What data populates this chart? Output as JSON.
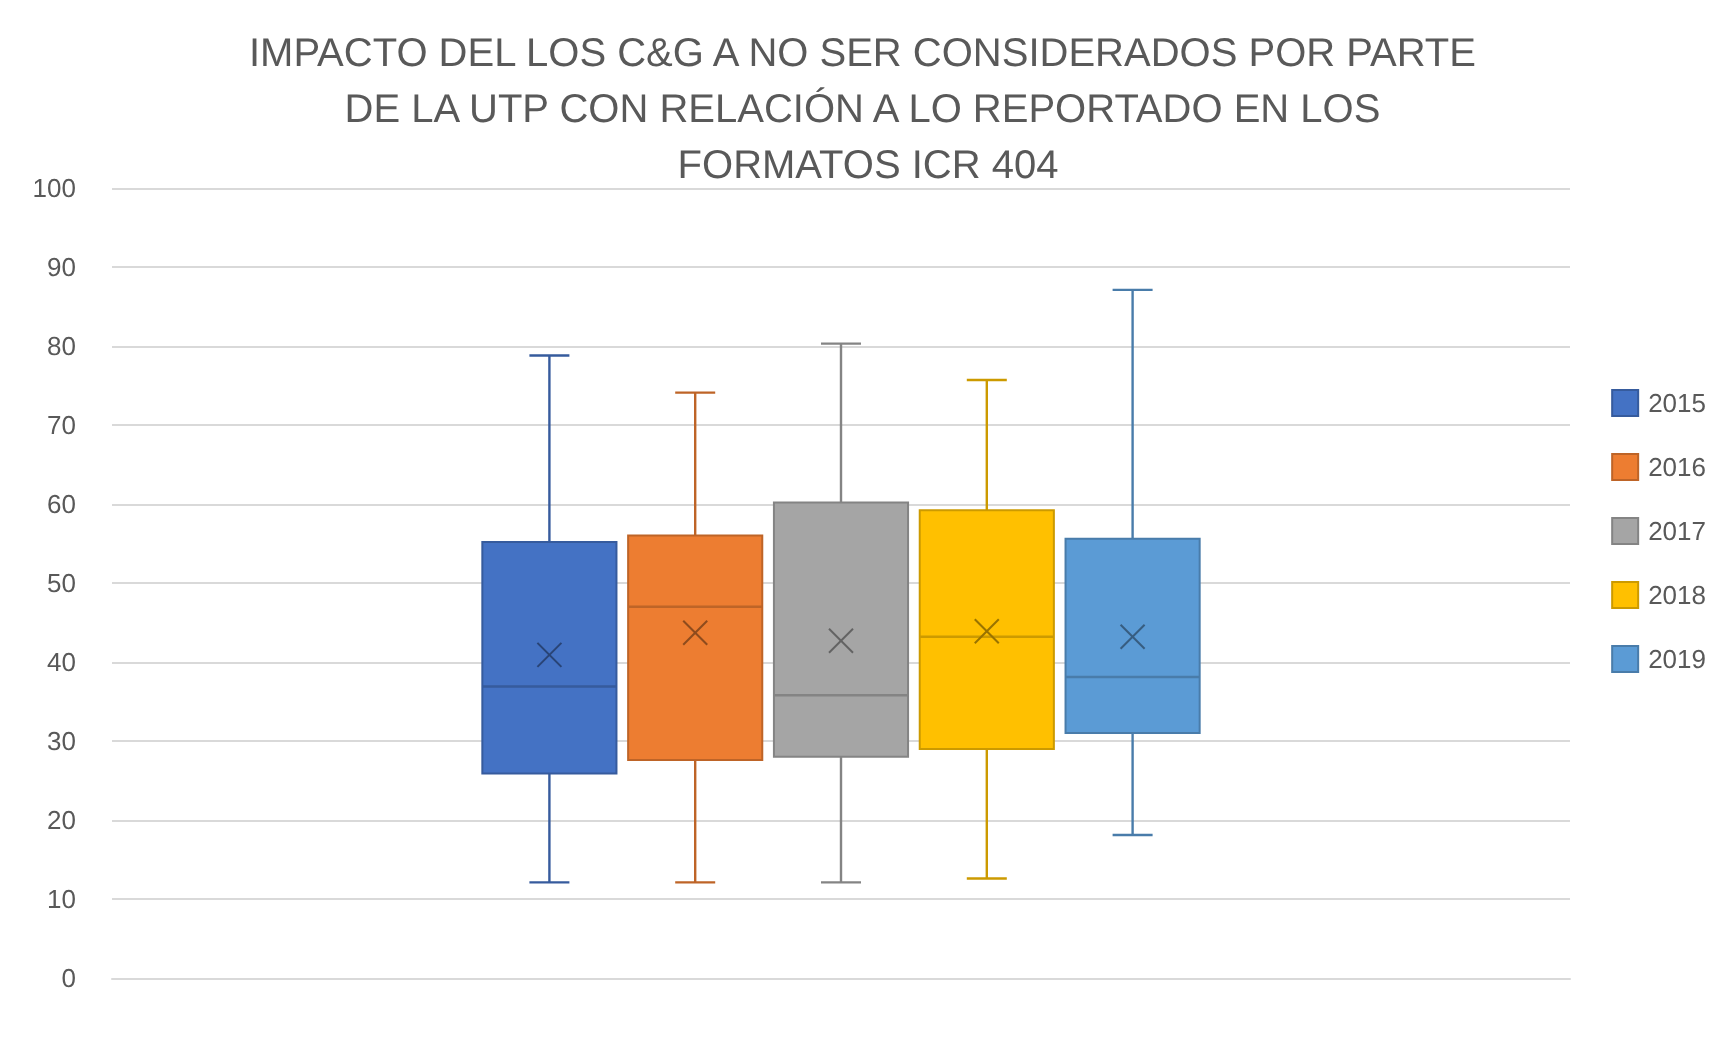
{
  "chart_data": {
    "type": "box",
    "title": "IMPACTO DEL LOS C&G A NO SER CONSIDERADOS POR PARTE DE LA UTP CON RELACIÓN A LO REPORTADO EN LOS FORMATOS ICR 404",
    "categories": [
      null
    ],
    "series": [
      {
        "name": "2015",
        "color": "#4472c4",
        "boxes": [
          {
            "low": 12.1,
            "q1": 25.9,
            "median": 36.9,
            "q3": 55.2,
            "high": 78.8,
            "mean": 40.9
          }
        ]
      },
      {
        "name": "2016",
        "color": "#ed7d31",
        "boxes": [
          {
            "low": 12.1,
            "q1": 27.6,
            "median": 47.0,
            "q3": 56.0,
            "high": 74.1,
            "mean": 43.7
          }
        ]
      },
      {
        "name": "2017",
        "color": "#a5a5a5",
        "boxes": [
          {
            "low": 12.1,
            "q1": 28.0,
            "median": 35.8,
            "q3": 60.2,
            "high": 80.3,
            "mean": 42.7
          }
        ]
      },
      {
        "name": "2018",
        "color": "#ffc000",
        "boxes": [
          {
            "low": 12.6,
            "q1": 29.0,
            "median": 43.2,
            "q3": 59.2,
            "high": 75.7,
            "mean": 43.9
          }
        ]
      },
      {
        "name": "2019",
        "color": "#5b9bd5",
        "boxes": [
          {
            "low": 18.1,
            "q1": 31.0,
            "median": 38.1,
            "q3": 55.6,
            "high": 87.1,
            "mean": 43.2
          }
        ]
      }
    ],
    "ylim": [
      0,
      100
    ],
    "yticks": [
      0,
      10,
      20,
      30,
      40,
      50,
      60,
      70,
      80,
      90,
      100
    ],
    "grid": "y",
    "legend": "right",
    "marker": "cross"
  }
}
